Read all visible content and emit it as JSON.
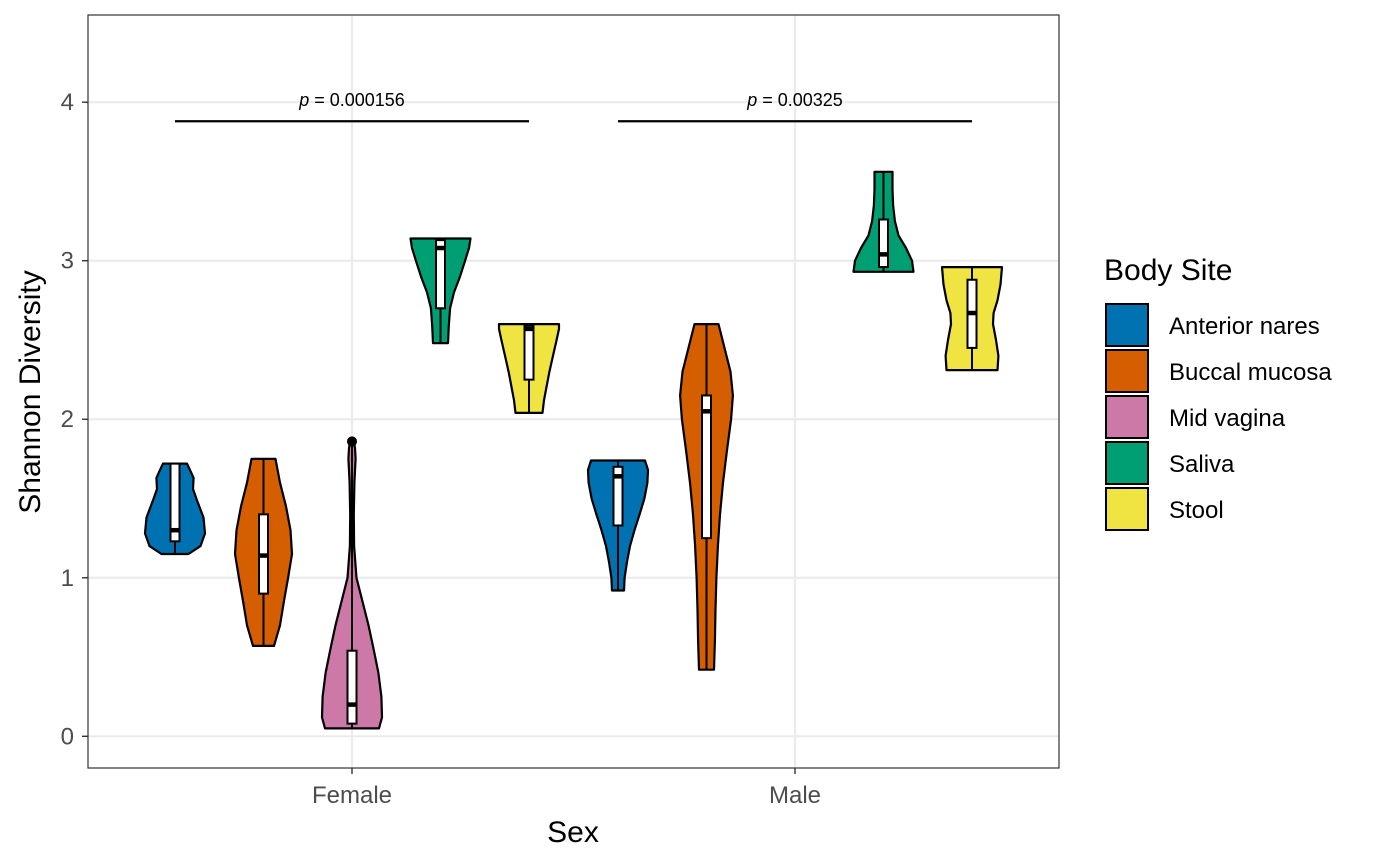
{
  "chart_data": {
    "type": "violin",
    "xlabel": "Sex",
    "ylabel": "Shannon Diversity",
    "categories": [
      "Female",
      "Male"
    ],
    "ylim": [
      -0.2,
      4.55
    ],
    "yticks": [
      0,
      1,
      2,
      3,
      4
    ],
    "grid": true,
    "legend": {
      "title": "Body Site",
      "position": "right"
    },
    "series": [
      {
        "name": "Anterior nares",
        "color": "#0072B2",
        "groups": [
          {
            "category": "Female",
            "min": 1.15,
            "max": 1.72,
            "q1": 1.23,
            "median": 1.3,
            "q3": 1.72,
            "density": [
              [
                1.15,
                0.45
              ],
              [
                1.2,
                0.85
              ],
              [
                1.28,
                1.0
              ],
              [
                1.38,
                0.95
              ],
              [
                1.48,
                0.75
              ],
              [
                1.56,
                0.6
              ],
              [
                1.63,
                0.62
              ],
              [
                1.68,
                0.5
              ],
              [
                1.72,
                0.4
              ]
            ]
          },
          {
            "category": "Male",
            "min": 0.92,
            "max": 1.74,
            "q1": 1.33,
            "median": 1.64,
            "q3": 1.7,
            "density": [
              [
                0.92,
                0.2
              ],
              [
                1.0,
                0.22
              ],
              [
                1.1,
                0.3
              ],
              [
                1.2,
                0.4
              ],
              [
                1.3,
                0.55
              ],
              [
                1.4,
                0.72
              ],
              [
                1.5,
                0.88
              ],
              [
                1.6,
                0.98
              ],
              [
                1.68,
                1.0
              ],
              [
                1.74,
                0.9
              ]
            ]
          }
        ]
      },
      {
        "name": "Buccal mucosa",
        "color": "#D55E00",
        "groups": [
          {
            "category": "Female",
            "min": 0.57,
            "max": 1.75,
            "q1": 0.9,
            "median": 1.14,
            "q3": 1.4,
            "density": [
              [
                0.57,
                0.35
              ],
              [
                0.7,
                0.55
              ],
              [
                0.85,
                0.68
              ],
              [
                1.0,
                0.82
              ],
              [
                1.15,
                0.95
              ],
              [
                1.3,
                0.9
              ],
              [
                1.45,
                0.75
              ],
              [
                1.6,
                0.55
              ],
              [
                1.75,
                0.4
              ]
            ]
          },
          {
            "category": "Male",
            "min": 0.42,
            "max": 2.6,
            "q1": 1.25,
            "median": 2.05,
            "q3": 2.15,
            "density": [
              [
                0.42,
                0.25
              ],
              [
                0.6,
                0.28
              ],
              [
                0.8,
                0.3
              ],
              [
                1.0,
                0.33
              ],
              [
                1.2,
                0.38
              ],
              [
                1.4,
                0.45
              ],
              [
                1.6,
                0.55
              ],
              [
                1.8,
                0.68
              ],
              [
                2.0,
                0.82
              ],
              [
                2.15,
                0.88
              ],
              [
                2.3,
                0.8
              ],
              [
                2.45,
                0.6
              ],
              [
                2.6,
                0.4
              ]
            ]
          }
        ]
      },
      {
        "name": "Mid vagina",
        "color": "#CC79A7",
        "groups": [
          {
            "category": "Female",
            "min": 0.05,
            "max": 1.86,
            "q1": 0.08,
            "median": 0.2,
            "q3": 0.54,
            "outliers": [
              1.86
            ],
            "density": [
              [
                0.05,
                0.9
              ],
              [
                0.12,
                1.0
              ],
              [
                0.25,
                0.98
              ],
              [
                0.4,
                0.88
              ],
              [
                0.55,
                0.72
              ],
              [
                0.7,
                0.55
              ],
              [
                0.85,
                0.35
              ],
              [
                1.0,
                0.15
              ],
              [
                1.2,
                0.07
              ],
              [
                1.4,
                0.06
              ],
              [
                1.6,
                0.08
              ],
              [
                1.75,
                0.12
              ],
              [
                1.82,
                0.1
              ],
              [
                1.86,
                0.06
              ]
            ]
          }
        ]
      },
      {
        "name": "Saliva",
        "color": "#009E73",
        "groups": [
          {
            "category": "Female",
            "min": 2.48,
            "max": 3.14,
            "q1": 2.7,
            "median": 3.08,
            "q3": 3.13,
            "density": [
              [
                2.48,
                0.25
              ],
              [
                2.6,
                0.28
              ],
              [
                2.7,
                0.32
              ],
              [
                2.8,
                0.45
              ],
              [
                2.9,
                0.65
              ],
              [
                3.0,
                0.82
              ],
              [
                3.08,
                0.95
              ],
              [
                3.14,
                1.0
              ]
            ]
          },
          {
            "category": "Male",
            "min": 2.93,
            "max": 3.56,
            "q1": 2.96,
            "median": 3.04,
            "q3": 3.26,
            "density": [
              [
                2.93,
                1.0
              ],
              [
                3.0,
                0.95
              ],
              [
                3.08,
                0.75
              ],
              [
                3.16,
                0.5
              ],
              [
                3.25,
                0.38
              ],
              [
                3.35,
                0.32
              ],
              [
                3.45,
                0.3
              ],
              [
                3.56,
                0.3
              ]
            ]
          }
        ]
      },
      {
        "name": "Stool",
        "color": "#F0E442",
        "groups": [
          {
            "category": "Female",
            "min": 2.04,
            "max": 2.6,
            "q1": 2.25,
            "median": 2.57,
            "q3": 2.59,
            "density": [
              [
                2.04,
                0.45
              ],
              [
                2.12,
                0.5
              ],
              [
                2.2,
                0.58
              ],
              [
                2.3,
                0.68
              ],
              [
                2.4,
                0.8
              ],
              [
                2.5,
                0.92
              ],
              [
                2.57,
                1.0
              ],
              [
                2.6,
                1.0
              ]
            ]
          },
          {
            "category": "Male",
            "min": 2.31,
            "max": 2.96,
            "q1": 2.45,
            "median": 2.67,
            "q3": 2.88,
            "density": [
              [
                2.31,
                0.85
              ],
              [
                2.4,
                0.88
              ],
              [
                2.5,
                0.8
              ],
              [
                2.6,
                0.7
              ],
              [
                2.67,
                0.72
              ],
              [
                2.75,
                0.85
              ],
              [
                2.85,
                0.95
              ],
              [
                2.96,
                1.0
              ]
            ]
          }
        ]
      }
    ],
    "annotations": [
      {
        "category": "Female",
        "p_label": "p",
        "p_value": " = 0.000156",
        "y": 3.88
      },
      {
        "category": "Male",
        "p_label": "p",
        "p_value": " = 0.00325",
        "y": 3.88
      }
    ]
  }
}
